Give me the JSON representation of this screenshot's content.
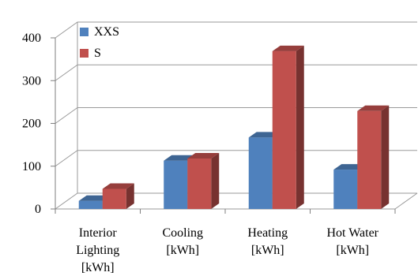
{
  "chart_data": {
    "type": "bar",
    "style": "3d-clustered-column",
    "categories": [
      [
        "Interior",
        "Lighting",
        "[kWh]"
      ],
      [
        "Cooling",
        "[kWh]"
      ],
      [
        "Heating",
        "[kWh]"
      ],
      [
        "Hot Water",
        "[kWh]"
      ]
    ],
    "series": [
      {
        "name": "XXS",
        "values": [
          19,
          113,
          167,
          92
        ],
        "color": "#4F81BD"
      },
      {
        "name": "S",
        "values": [
          47,
          118,
          369,
          229
        ],
        "color": "#C0504D"
      }
    ],
    "yticks": [
      "0",
      "100",
      "200",
      "300",
      "400"
    ],
    "ylim": [
      0,
      400
    ],
    "grid": true,
    "legend": "top-left"
  }
}
